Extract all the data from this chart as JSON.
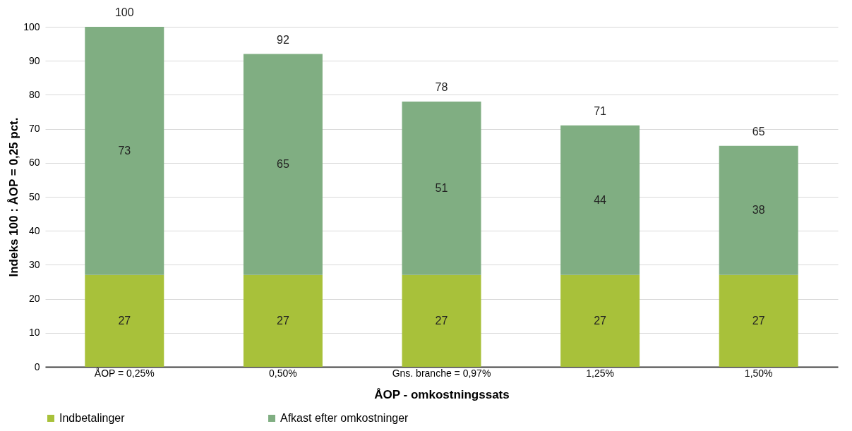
{
  "chart_data": {
    "type": "bar",
    "stacked": true,
    "xlabel": "ÅOP - omkostningssats",
    "ylabel": "Indeks 100 : ÅOP = 0,25 pct.",
    "categories": [
      "ÅOP = 0,25%",
      "0,50%",
      "Gns. branche = 0,97%",
      "1,25%",
      "1,50%"
    ],
    "series": [
      {
        "name": "Indbetalinger",
        "color": "#a8c13a",
        "values": [
          27,
          27,
          27,
          27,
          27
        ]
      },
      {
        "name": "Afkast efter omkostninger",
        "color": "#80ae82",
        "values": [
          73,
          65,
          51,
          44,
          38
        ]
      }
    ],
    "totals": [
      "100",
      "92",
      "78",
      "71",
      "65"
    ],
    "data_labels": true,
    "ylim": [
      0,
      100
    ],
    "yticks": [
      0,
      10,
      20,
      30,
      40,
      50,
      60,
      70,
      80,
      90,
      100
    ],
    "grid": "y",
    "legend": "bottom"
  }
}
